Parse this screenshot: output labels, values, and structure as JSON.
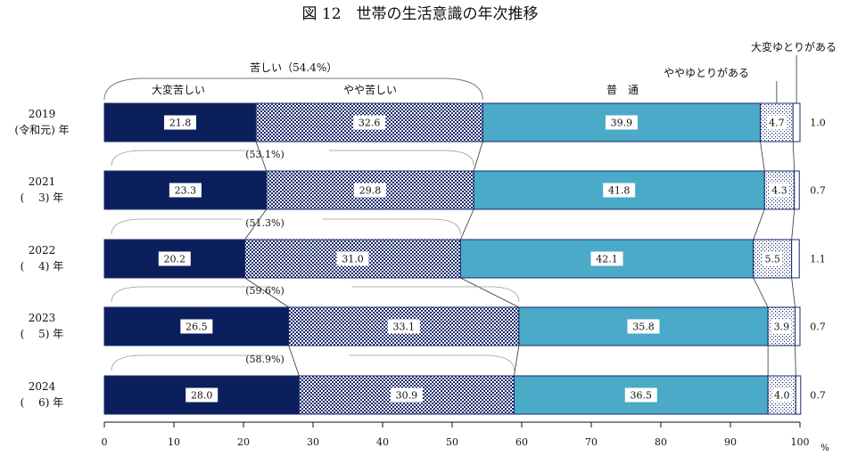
{
  "chart_data": {
    "type": "bar",
    "title": "図 12　世帯の生活意識の年次推移",
    "stacked": true,
    "orientation": "horizontal",
    "categories": [
      {
        "year": "2019",
        "era": "(令和元) 年"
      },
      {
        "year": "2021",
        "era": "(　 3) 年"
      },
      {
        "year": "2022",
        "era": "(　 4) 年"
      },
      {
        "year": "2023",
        "era": "(　 5) 年"
      },
      {
        "year": "2024",
        "era": "(　 6) 年"
      }
    ],
    "series": [
      {
        "name": "大変苦しい",
        "color": "#0b1f5c",
        "pattern": "solid-navy",
        "values": [
          21.8,
          23.3,
          20.2,
          26.5,
          28.0
        ],
        "labels": [
          "21.8",
          "23.3",
          "20.2",
          "26.5",
          "28.0"
        ]
      },
      {
        "name": "やや苦しい",
        "color": "#1a2a6c",
        "pattern": "dense-checker",
        "values": [
          32.6,
          29.8,
          31.0,
          33.1,
          30.9
        ],
        "labels": [
          "32.6",
          "29.8",
          "31.0",
          "33.1",
          "30.9"
        ]
      },
      {
        "name": "普　通",
        "color": "#4aaac8",
        "pattern": "solid-cyan",
        "values": [
          39.9,
          41.8,
          42.1,
          35.8,
          36.5
        ],
        "labels": [
          "39.9",
          "41.8",
          "42.1",
          "35.8",
          "36.5"
        ]
      },
      {
        "name": "ややゆとりがある",
        "color": "#1a2a6c",
        "pattern": "sparse-dots",
        "values": [
          4.7,
          4.3,
          5.5,
          3.9,
          4.0
        ],
        "labels": [
          "4.7",
          "4.3",
          "5.5",
          "3.9",
          "4.0"
        ]
      },
      {
        "name": "大変ゆとりがある",
        "color": "#ffffff",
        "pattern": "white",
        "values": [
          1.0,
          0.7,
          1.1,
          0.7,
          0.7
        ],
        "labels": [
          "1.0",
          "0.7",
          "1.1",
          "0.7",
          "0.7"
        ]
      }
    ],
    "hard_totals": [
      "苦しい（54.4%）",
      "(53.1%)",
      "(51.3%)",
      "(59.6%)",
      "(58.9%)"
    ],
    "xaxis": {
      "ticks": [
        "0",
        "10",
        "20",
        "30",
        "40",
        "50",
        "60",
        "70",
        "80",
        "90",
        "100"
      ],
      "unit": "%"
    },
    "xlim": [
      0,
      100
    ],
    "grid": false,
    "legend": "labels-on-top"
  }
}
